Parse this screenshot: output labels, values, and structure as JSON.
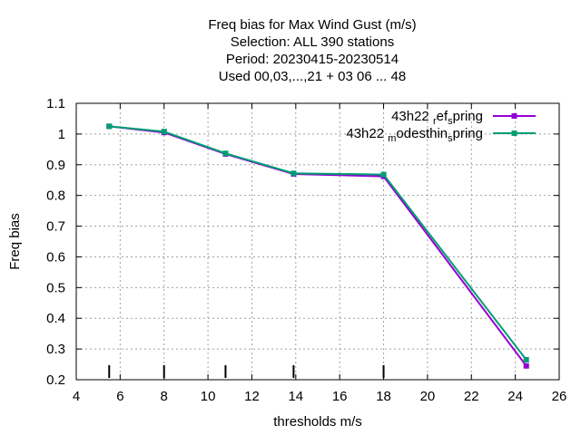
{
  "chart_data": {
    "type": "line",
    "title_lines": [
      "Freq bias  for Max Wind Gust (m/s)",
      "Selection: ALL    390 stations",
      "Period: 20230415-20230514",
      "Used  00,03,...,21  + 03 06 ... 48"
    ],
    "xlabel": "thresholds m/s",
    "ylabel": "Freq bias",
    "xlim": [
      4,
      26
    ],
    "ylim": [
      0.2,
      1.1
    ],
    "xticks": [
      4,
      6,
      8,
      10,
      12,
      14,
      16,
      18,
      20,
      22,
      24,
      26
    ],
    "yticks": [
      0.2,
      0.3,
      0.4,
      0.5,
      0.6,
      0.7,
      0.8,
      0.9,
      1,
      1.1
    ],
    "grid": true,
    "legend_position": "top-right",
    "threshold_marks": [
      5.5,
      8,
      10.8,
      13.9,
      18
    ],
    "series": [
      {
        "name": "43h22_ref_spring",
        "legend_parts": [
          "43h22",
          "r",
          "ef",
          "s",
          "pring"
        ],
        "color": "#9400d3",
        "x": [
          5.5,
          8,
          10.8,
          13.9,
          18,
          24.5
        ],
        "y": [
          1.025,
          1.005,
          0.935,
          0.87,
          0.862,
          0.245
        ]
      },
      {
        "name": "43h22_modesthin_spring",
        "legend_parts": [
          "43h22",
          "m",
          "odesthin",
          "s",
          "pring"
        ],
        "color": "#009e73",
        "x": [
          5.5,
          8,
          10.8,
          13.9,
          18,
          24.5
        ],
        "y": [
          1.025,
          1.008,
          0.937,
          0.872,
          0.868,
          0.265
        ]
      }
    ]
  }
}
